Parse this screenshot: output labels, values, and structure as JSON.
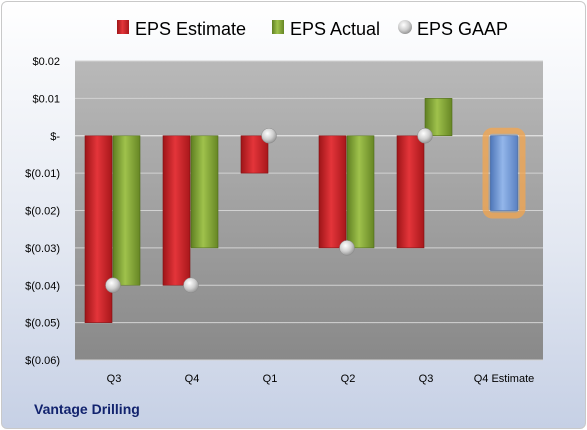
{
  "company": "Vantage Drilling",
  "colors": {
    "estimate": "#d8272b",
    "actual": "#8cae3a",
    "gaap": "#c6c6c6",
    "future_estimate": "#7ea3dd",
    "future_glow": "#f4a64e"
  },
  "chart_data": {
    "type": "bar",
    "categories": [
      "Q3",
      "Q4",
      "Q1",
      "Q2",
      "Q3",
      "Q4 Estimate"
    ],
    "series": [
      {
        "name": "EPS Estimate",
        "values": [
          -0.05,
          -0.04,
          -0.01,
          -0.03,
          -0.03,
          -0.02
        ]
      },
      {
        "name": "EPS Actual",
        "values": [
          -0.04,
          -0.03,
          null,
          -0.03,
          0.01,
          null
        ]
      },
      {
        "name": "EPS GAAP",
        "values": [
          -0.04,
          -0.04,
          0.0,
          -0.03,
          0.0,
          null
        ]
      }
    ],
    "ylim": [
      -0.06,
      0.02
    ],
    "yticks": [
      {
        "value": 0.02,
        "label": "$0.02"
      },
      {
        "value": 0.01,
        "label": "$0.01"
      },
      {
        "value": 0.0,
        "label": "$-"
      },
      {
        "value": -0.01,
        "label": "$(0.01)"
      },
      {
        "value": -0.02,
        "label": "$(0.02)"
      },
      {
        "value": -0.03,
        "label": "$(0.03)"
      },
      {
        "value": -0.04,
        "label": "$(0.04)"
      },
      {
        "value": -0.05,
        "label": "$(0.05)"
      },
      {
        "value": -0.06,
        "label": "$(0.06)"
      }
    ],
    "legend": {
      "position": "top"
    },
    "grid": true
  }
}
